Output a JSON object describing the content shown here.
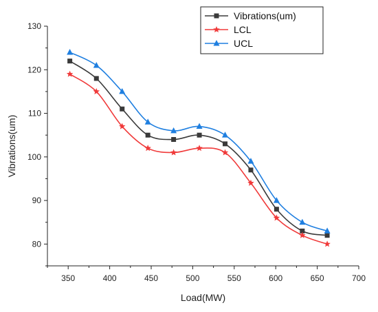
{
  "chart_data": {
    "type": "line",
    "xlabel": "Load(MW)",
    "ylabel": "Vibrations(um)",
    "xlim": [
      325,
      700
    ],
    "ylim": [
      75,
      130
    ],
    "xticks": [
      350,
      400,
      450,
      500,
      550,
      600,
      650,
      700
    ],
    "yticks": [
      80,
      90,
      100,
      110,
      120,
      130
    ],
    "grid": false,
    "legend_position": "top-right",
    "x": [
      352,
      384,
      415,
      446,
      477,
      508,
      539,
      570,
      601,
      632,
      662
    ],
    "series": [
      {
        "name": "Vibrations(um)",
        "color": "#3a3a3a",
        "marker": "square",
        "values": [
          122,
          118,
          111,
          105,
          104,
          105,
          103,
          97,
          88,
          83,
          82
        ]
      },
      {
        "name": "LCL",
        "color": "#f03a3a",
        "marker": "star",
        "values": [
          119,
          115,
          107,
          102,
          101,
          102,
          101,
          94,
          86,
          82,
          80
        ]
      },
      {
        "name": "UCL",
        "color": "#1f7fe0",
        "marker": "triangle",
        "values": [
          124,
          121,
          115,
          108,
          106,
          107,
          105,
          99,
          90,
          85,
          83
        ]
      }
    ]
  }
}
